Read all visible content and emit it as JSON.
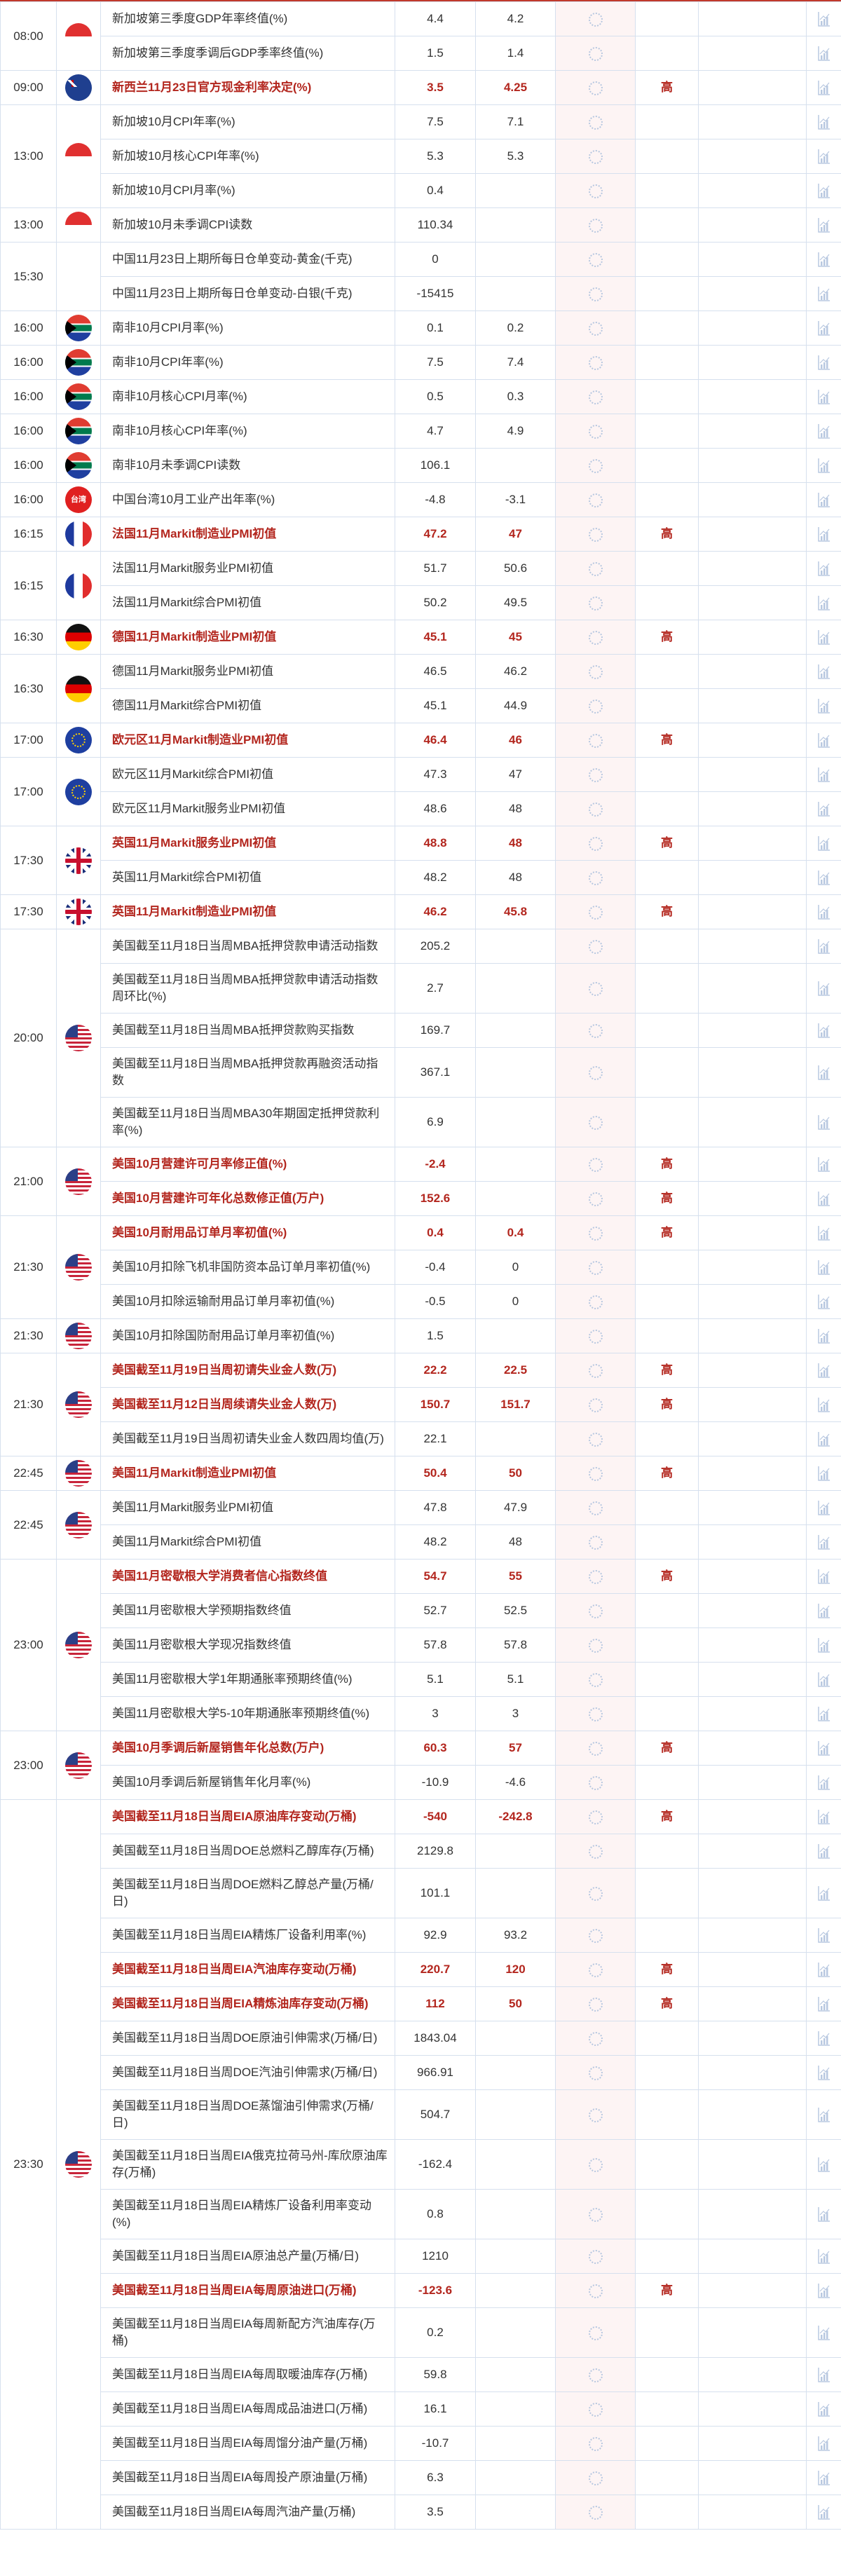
{
  "colors": {
    "accent_red": "#b3261e",
    "border": "#d6e0ee",
    "actual_bg": "#fdf4f4"
  },
  "importance_high_label": "高",
  "groups": [
    {
      "time": "08:00",
      "flag": "sg",
      "rows": [
        {
          "name": "新加坡第三季度GDP年率终值(%)",
          "prev": "4.4",
          "forecast": "4.2",
          "actual": "",
          "importance": ""
        },
        {
          "name": "新加坡第三季度季调后GDP季率终值(%)",
          "prev": "1.5",
          "forecast": "1.4",
          "actual": "",
          "importance": ""
        }
      ]
    },
    {
      "time": "09:00",
      "flag": "nz",
      "rows": [
        {
          "name": "新西兰11月23日官方现金利率决定(%)",
          "prev": "3.5",
          "forecast": "4.25",
          "actual": "",
          "importance": "高"
        }
      ]
    },
    {
      "time": "13:00",
      "flag": "sg",
      "rows": [
        {
          "name": "新加坡10月CPI年率(%)",
          "prev": "7.5",
          "forecast": "7.1",
          "actual": "",
          "importance": ""
        },
        {
          "name": "新加坡10月核心CPI年率(%)",
          "prev": "5.3",
          "forecast": "5.3",
          "actual": "",
          "importance": ""
        },
        {
          "name": "新加坡10月CPI月率(%)",
          "prev": "0.4",
          "forecast": "",
          "actual": "",
          "importance": ""
        }
      ]
    },
    {
      "time": "13:00",
      "flag": "sg",
      "rows": [
        {
          "name": "新加坡10月未季调CPI读数",
          "prev": "110.34",
          "forecast": "",
          "actual": "",
          "importance": ""
        }
      ]
    },
    {
      "time": "15:30",
      "flag": "",
      "rows": [
        {
          "name": "中国11月23日上期所每日仓单变动-黄金(千克)",
          "prev": "0",
          "forecast": "",
          "actual": "",
          "importance": ""
        },
        {
          "name": "中国11月23日上期所每日仓单变动-白银(千克)",
          "prev": "-15415",
          "forecast": "",
          "actual": "",
          "importance": ""
        }
      ]
    },
    {
      "time": "16:00",
      "flag": "za",
      "rows": [
        {
          "name": "南非10月CPI月率(%)",
          "prev": "0.1",
          "forecast": "0.2",
          "actual": "",
          "importance": ""
        }
      ]
    },
    {
      "time": "16:00",
      "flag": "za",
      "rows": [
        {
          "name": "南非10月CPI年率(%)",
          "prev": "7.5",
          "forecast": "7.4",
          "actual": "",
          "importance": ""
        }
      ]
    },
    {
      "time": "16:00",
      "flag": "za",
      "rows": [
        {
          "name": "南非10月核心CPI月率(%)",
          "prev": "0.5",
          "forecast": "0.3",
          "actual": "",
          "importance": ""
        }
      ]
    },
    {
      "time": "16:00",
      "flag": "za",
      "rows": [
        {
          "name": "南非10月核心CPI年率(%)",
          "prev": "4.7",
          "forecast": "4.9",
          "actual": "",
          "importance": ""
        }
      ]
    },
    {
      "time": "16:00",
      "flag": "za",
      "rows": [
        {
          "name": "南非10月未季调CPI读数",
          "prev": "106.1",
          "forecast": "",
          "actual": "",
          "importance": ""
        }
      ]
    },
    {
      "time": "16:00",
      "flag": "tw",
      "flag_text": "台湾",
      "rows": [
        {
          "name": "中国台湾10月工业产出年率(%)",
          "prev": "-4.8",
          "forecast": "-3.1",
          "actual": "",
          "importance": ""
        }
      ]
    },
    {
      "time": "16:15",
      "flag": "fr",
      "rows": [
        {
          "name": "法国11月Markit制造业PMI初值",
          "prev": "47.2",
          "forecast": "47",
          "actual": "",
          "importance": "高"
        }
      ]
    },
    {
      "time": "16:15",
      "flag": "fr",
      "rows": [
        {
          "name": "法国11月Markit服务业PMI初值",
          "prev": "51.7",
          "forecast": "50.6",
          "actual": "",
          "importance": ""
        },
        {
          "name": "法国11月Markit综合PMI初值",
          "prev": "50.2",
          "forecast": "49.5",
          "actual": "",
          "importance": ""
        }
      ]
    },
    {
      "time": "16:30",
      "flag": "de",
      "rows": [
        {
          "name": "德国11月Markit制造业PMI初值",
          "prev": "45.1",
          "forecast": "45",
          "actual": "",
          "importance": "高"
        }
      ]
    },
    {
      "time": "16:30",
      "flag": "de",
      "rows": [
        {
          "name": "德国11月Markit服务业PMI初值",
          "prev": "46.5",
          "forecast": "46.2",
          "actual": "",
          "importance": ""
        },
        {
          "name": "德国11月Markit综合PMI初值",
          "prev": "45.1",
          "forecast": "44.9",
          "actual": "",
          "importance": ""
        }
      ]
    },
    {
      "time": "17:00",
      "flag": "eu",
      "rows": [
        {
          "name": "欧元区11月Markit制造业PMI初值",
          "prev": "46.4",
          "forecast": "46",
          "actual": "",
          "importance": "高"
        }
      ]
    },
    {
      "time": "17:00",
      "flag": "eu",
      "rows": [
        {
          "name": "欧元区11月Markit综合PMI初值",
          "prev": "47.3",
          "forecast": "47",
          "actual": "",
          "importance": ""
        },
        {
          "name": "欧元区11月Markit服务业PMI初值",
          "prev": "48.6",
          "forecast": "48",
          "actual": "",
          "importance": ""
        }
      ]
    },
    {
      "time": "17:30",
      "flag": "uk",
      "rows": [
        {
          "name": "英国11月Markit服务业PMI初值",
          "prev": "48.8",
          "forecast": "48",
          "actual": "",
          "importance": "高"
        },
        {
          "name": "英国11月Markit综合PMI初值",
          "prev": "48.2",
          "forecast": "48",
          "actual": "",
          "importance": ""
        }
      ]
    },
    {
      "time": "17:30",
      "flag": "uk",
      "rows": [
        {
          "name": "英国11月Markit制造业PMI初值",
          "prev": "46.2",
          "forecast": "45.8",
          "actual": "",
          "importance": "高"
        }
      ]
    },
    {
      "time": "20:00",
      "flag": "us",
      "rows": [
        {
          "name": "美国截至11月18日当周MBA抵押贷款申请活动指数",
          "prev": "205.2",
          "forecast": "",
          "actual": "",
          "importance": ""
        },
        {
          "name": "美国截至11月18日当周MBA抵押贷款申请活动指数周环比(%)",
          "prev": "2.7",
          "forecast": "",
          "actual": "",
          "importance": ""
        },
        {
          "name": "美国截至11月18日当周MBA抵押贷款购买指数",
          "prev": "169.7",
          "forecast": "",
          "actual": "",
          "importance": ""
        },
        {
          "name": "美国截至11月18日当周MBA抵押贷款再融资活动指数",
          "prev": "367.1",
          "forecast": "",
          "actual": "",
          "importance": ""
        },
        {
          "name": "美国截至11月18日当周MBA30年期固定抵押贷款利率(%)",
          "prev": "6.9",
          "forecast": "",
          "actual": "",
          "importance": ""
        }
      ]
    },
    {
      "time": "21:00",
      "flag": "us",
      "rows": [
        {
          "name": "美国10月营建许可月率修正值(%)",
          "prev": "-2.4",
          "forecast": "",
          "actual": "",
          "importance": "高"
        },
        {
          "name": "美国10月营建许可年化总数修正值(万户)",
          "prev": "152.6",
          "forecast": "",
          "actual": "",
          "importance": "高"
        }
      ]
    },
    {
      "time": "21:30",
      "flag": "us",
      "rows": [
        {
          "name": "美国10月耐用品订单月率初值(%)",
          "prev": "0.4",
          "forecast": "0.4",
          "actual": "",
          "importance": "高"
        },
        {
          "name": "美国10月扣除飞机非国防资本品订单月率初值(%)",
          "prev": "-0.4",
          "forecast": "0",
          "actual": "",
          "importance": ""
        },
        {
          "name": "美国10月扣除运输耐用品订单月率初值(%)",
          "prev": "-0.5",
          "forecast": "0",
          "actual": "",
          "importance": ""
        }
      ]
    },
    {
      "time": "21:30",
      "flag": "us",
      "rows": [
        {
          "name": "美国10月扣除国防耐用品订单月率初值(%)",
          "prev": "1.5",
          "forecast": "",
          "actual": "",
          "importance": ""
        }
      ]
    },
    {
      "time": "21:30",
      "flag": "us",
      "rows": [
        {
          "name": "美国截至11月19日当周初请失业金人数(万)",
          "prev": "22.2",
          "forecast": "22.5",
          "actual": "",
          "importance": "高"
        },
        {
          "name": "美国截至11月12日当周续请失业金人数(万)",
          "prev": "150.7",
          "forecast": "151.7",
          "actual": "",
          "importance": "高"
        },
        {
          "name": "美国截至11月19日当周初请失业金人数四周均值(万)",
          "prev": "22.1",
          "forecast": "",
          "actual": "",
          "importance": ""
        }
      ]
    },
    {
      "time": "22:45",
      "flag": "us",
      "rows": [
        {
          "name": "美国11月Markit制造业PMI初值",
          "prev": "50.4",
          "forecast": "50",
          "actual": "",
          "importance": "高"
        }
      ]
    },
    {
      "time": "22:45",
      "flag": "us",
      "rows": [
        {
          "name": "美国11月Markit服务业PMI初值",
          "prev": "47.8",
          "forecast": "47.9",
          "actual": "",
          "importance": ""
        },
        {
          "name": "美国11月Markit综合PMI初值",
          "prev": "48.2",
          "forecast": "48",
          "actual": "",
          "importance": ""
        }
      ]
    },
    {
      "time": "23:00",
      "flag": "us",
      "rows": [
        {
          "name": "美国11月密歇根大学消费者信心指数终值",
          "prev": "54.7",
          "forecast": "55",
          "actual": "",
          "importance": "高"
        },
        {
          "name": "美国11月密歇根大学预期指数终值",
          "prev": "52.7",
          "forecast": "52.5",
          "actual": "",
          "importance": ""
        },
        {
          "name": "美国11月密歇根大学现况指数终值",
          "prev": "57.8",
          "forecast": "57.8",
          "actual": "",
          "importance": ""
        },
        {
          "name": "美国11月密歇根大学1年期通胀率预期终值(%)",
          "prev": "5.1",
          "forecast": "5.1",
          "actual": "",
          "importance": ""
        },
        {
          "name": "美国11月密歇根大学5-10年期通胀率预期终值(%)",
          "prev": "3",
          "forecast": "3",
          "actual": "",
          "importance": ""
        }
      ]
    },
    {
      "time": "23:00",
      "flag": "us",
      "rows": [
        {
          "name": "美国10月季调后新屋销售年化总数(万户)",
          "prev": "60.3",
          "forecast": "57",
          "actual": "",
          "importance": "高"
        },
        {
          "name": "美国10月季调后新屋销售年化月率(%)",
          "prev": "-10.9",
          "forecast": "-4.6",
          "actual": "",
          "importance": ""
        }
      ]
    },
    {
      "time": "23:30",
      "flag": "us",
      "rows": [
        {
          "name": "美国截至11月18日当周EIA原油库存变动(万桶)",
          "prev": "-540",
          "forecast": "-242.8",
          "actual": "",
          "importance": "高"
        },
        {
          "name": "美国截至11月18日当周DOE总燃料乙醇库存(万桶)",
          "prev": "2129.8",
          "forecast": "",
          "actual": "",
          "importance": ""
        },
        {
          "name": "美国截至11月18日当周DOE燃料乙醇总产量(万桶/日)",
          "prev": "101.1",
          "forecast": "",
          "actual": "",
          "importance": ""
        },
        {
          "name": "美国截至11月18日当周EIA精炼厂设备利用率(%)",
          "prev": "92.9",
          "forecast": "93.2",
          "actual": "",
          "importance": ""
        },
        {
          "name": "美国截至11月18日当周EIA汽油库存变动(万桶)",
          "prev": "220.7",
          "forecast": "120",
          "actual": "",
          "importance": "高"
        },
        {
          "name": "美国截至11月18日当周EIA精炼油库存变动(万桶)",
          "prev": "112",
          "forecast": "50",
          "actual": "",
          "importance": "高"
        },
        {
          "name": "美国截至11月18日当周DOE原油引伸需求(万桶/日)",
          "prev": "1843.04",
          "forecast": "",
          "actual": "",
          "importance": ""
        },
        {
          "name": "美国截至11月18日当周DOE汽油引伸需求(万桶/日)",
          "prev": "966.91",
          "forecast": "",
          "actual": "",
          "importance": ""
        },
        {
          "name": "美国截至11月18日当周DOE蒸馏油引伸需求(万桶/日)",
          "prev": "504.7",
          "forecast": "",
          "actual": "",
          "importance": ""
        },
        {
          "name": "美国截至11月18日当周EIA俄克拉荷马州-库欣原油库存(万桶)",
          "prev": "-162.4",
          "forecast": "",
          "actual": "",
          "importance": ""
        },
        {
          "name": "美国截至11月18日当周EIA精炼厂设备利用率变动(%)",
          "prev": "0.8",
          "forecast": "",
          "actual": "",
          "importance": ""
        },
        {
          "name": "美国截至11月18日当周EIA原油总产量(万桶/日)",
          "prev": "1210",
          "forecast": "",
          "actual": "",
          "importance": ""
        },
        {
          "name": "美国截至11月18日当周EIA每周原油进口(万桶)",
          "prev": "-123.6",
          "forecast": "",
          "actual": "",
          "importance": "高"
        },
        {
          "name": "美国截至11月18日当周EIA每周新配方汽油库存(万桶)",
          "prev": "0.2",
          "forecast": "",
          "actual": "",
          "importance": ""
        },
        {
          "name": "美国截至11月18日当周EIA每周取暖油库存(万桶)",
          "prev": "59.8",
          "forecast": "",
          "actual": "",
          "importance": ""
        },
        {
          "name": "美国截至11月18日当周EIA每周成品油进口(万桶)",
          "prev": "16.1",
          "forecast": "",
          "actual": "",
          "importance": ""
        },
        {
          "name": "美国截至11月18日当周EIA每周馏分油产量(万桶)",
          "prev": "-10.7",
          "forecast": "",
          "actual": "",
          "importance": ""
        },
        {
          "name": "美国截至11月18日当周EIA每周投产原油量(万桶)",
          "prev": "6.3",
          "forecast": "",
          "actual": "",
          "importance": ""
        },
        {
          "name": "美国截至11月18日当周EIA每周汽油产量(万桶)",
          "prev": "3.5",
          "forecast": "",
          "actual": "",
          "importance": ""
        }
      ]
    }
  ]
}
